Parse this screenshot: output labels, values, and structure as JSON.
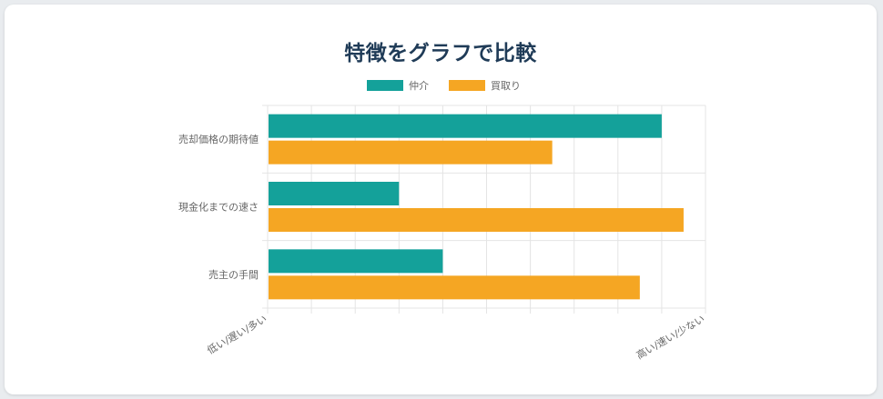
{
  "page": {
    "title": "特徴をグラフで比較"
  },
  "colors": {
    "series_a": "#14a19a",
    "series_b": "#f5a623",
    "grid": "#e4e4e4",
    "axis_text": "#666666",
    "title": "#1f3b57"
  },
  "chart_data": {
    "type": "bar",
    "orientation": "horizontal",
    "title": "",
    "categories": [
      "売却価格の期待値",
      "現金化までの速さ",
      "売主の手間"
    ],
    "series": [
      {
        "name": "仲介",
        "values": [
          9,
          3,
          4
        ]
      },
      {
        "name": "買取り",
        "values": [
          6.5,
          9.5,
          8.5
        ]
      }
    ],
    "xlim": [
      0,
      10
    ],
    "x_tick_labels": [
      "低い/遅い/多い",
      "高い/速い/少ない"
    ],
    "grid": true,
    "legend_position": "top-center"
  }
}
